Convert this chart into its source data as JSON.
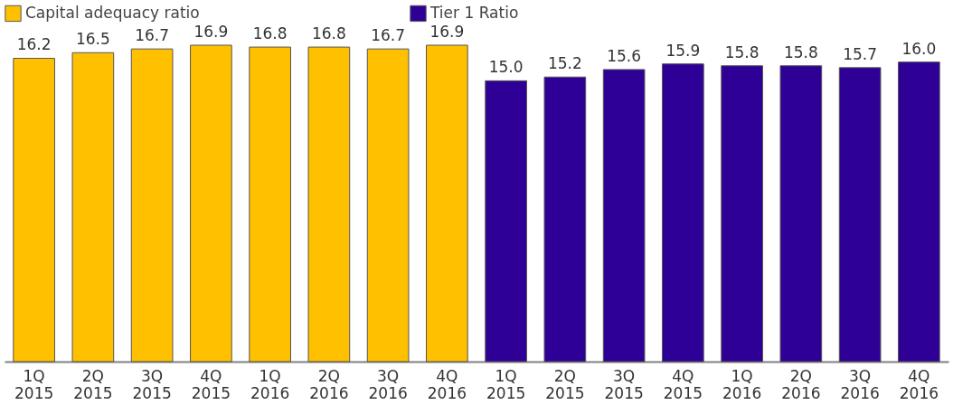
{
  "chart_data": {
    "type": "bar",
    "categories": [
      "1Q 2015",
      "2Q 2015",
      "3Q 2015",
      "4Q 2015",
      "1Q 2016",
      "2Q 2016",
      "3Q 2016",
      "4Q 2016",
      "1Q 2015",
      "2Q 2015",
      "3Q 2015",
      "4Q 2015",
      "1Q 2016",
      "2Q 2016",
      "3Q 2016",
      "4Q 2016"
    ],
    "series": [
      {
        "name": "Capital adequacy ratio",
        "color": "#ffc000",
        "values": [
          16.2,
          16.5,
          16.7,
          16.9,
          16.8,
          16.8,
          16.7,
          16.9,
          null,
          null,
          null,
          null,
          null,
          null,
          null,
          null
        ],
        "value_labels": [
          "16.2",
          "16.5",
          "16.7",
          "16.9",
          "16.8",
          "16.8",
          "16.7",
          "16.9",
          null,
          null,
          null,
          null,
          null,
          null,
          null,
          null
        ]
      },
      {
        "name": "Tier 1 Ratio",
        "color": "#2e0096",
        "values": [
          null,
          null,
          null,
          null,
          null,
          null,
          null,
          null,
          15.0,
          15.2,
          15.6,
          15.9,
          15.8,
          15.8,
          15.7,
          16.0
        ],
        "value_labels": [
          null,
          null,
          null,
          null,
          null,
          null,
          null,
          null,
          "15.0",
          "15.2",
          "15.6",
          "15.9",
          "15.8",
          "15.8",
          "15.7",
          "16.0"
        ]
      }
    ],
    "legend": "top left",
    "grid": false
  }
}
